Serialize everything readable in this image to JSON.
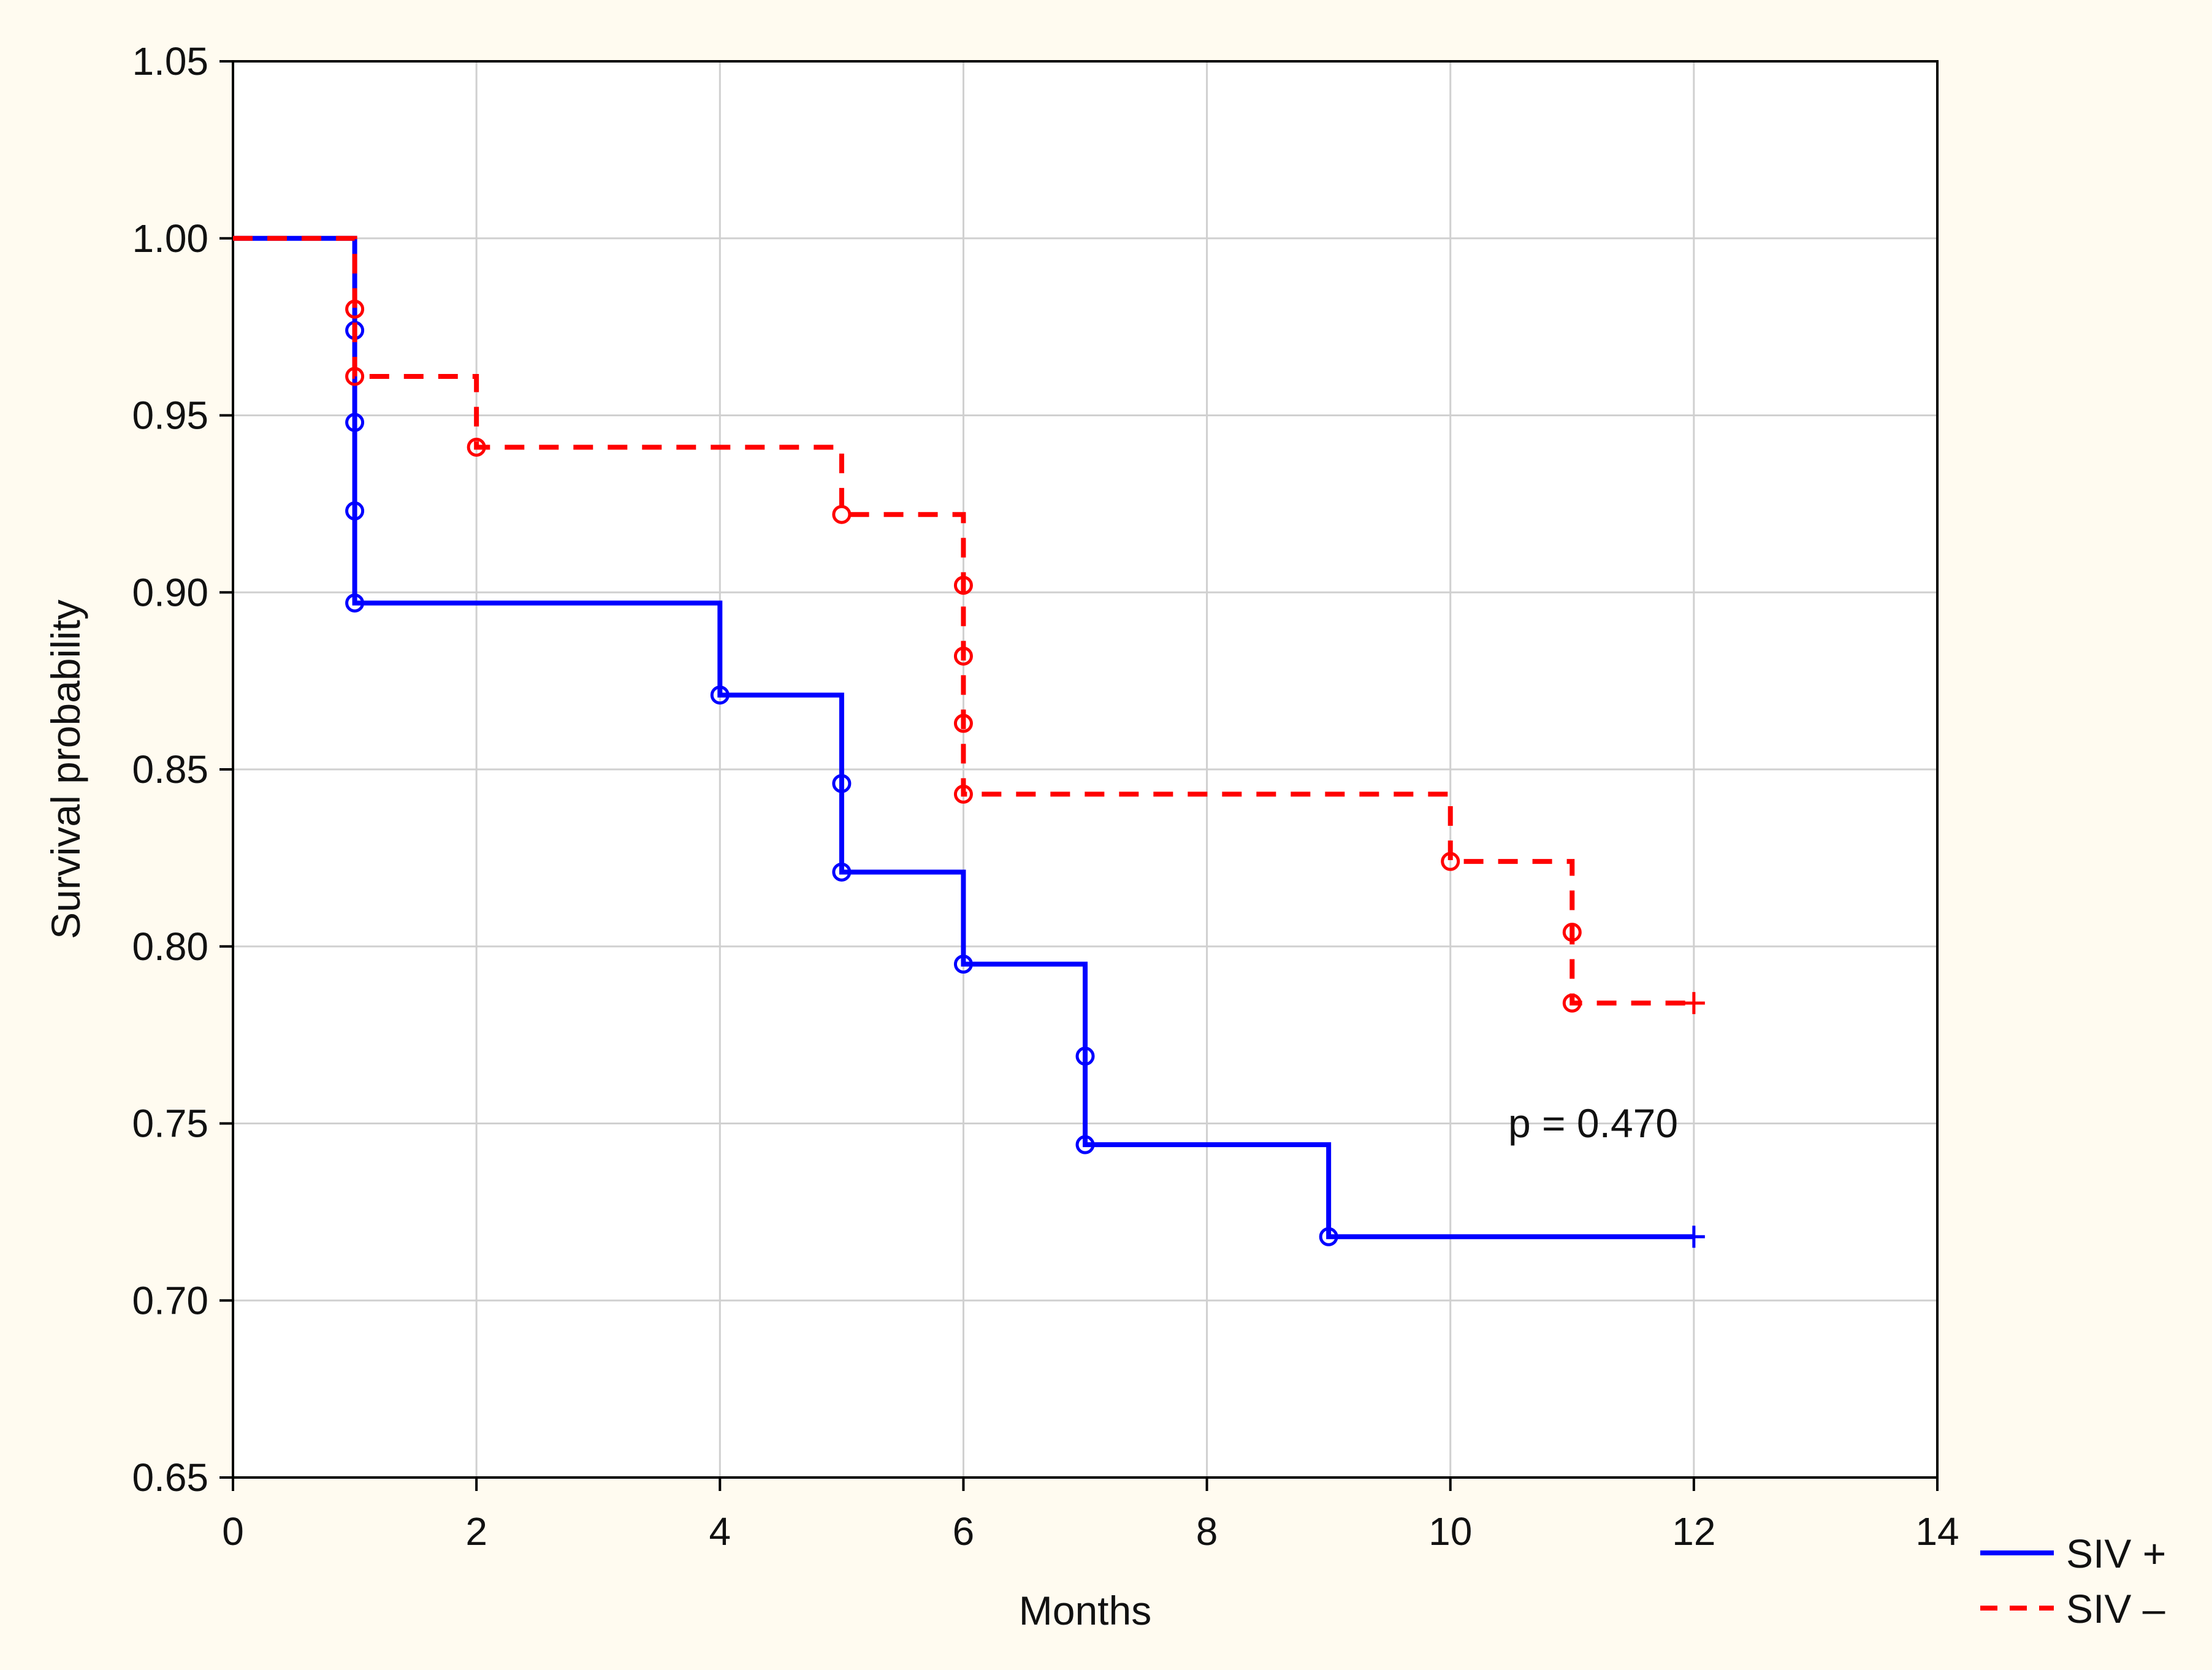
{
  "chart_data": {
    "type": "line",
    "subtype": "kaplan-meier step",
    "title": "",
    "xlabel": "Months",
    "ylabel": "Survival probability",
    "xlim": [
      0,
      14
    ],
    "ylim": [
      0.65,
      1.05
    ],
    "xticks": [
      "0",
      "2",
      "4",
      "6",
      "8",
      "10",
      "12",
      "14"
    ],
    "yticks": [
      "0.65",
      "0.70",
      "0.75",
      "0.80",
      "0.85",
      "0.90",
      "0.95",
      "1.00",
      "1.05"
    ],
    "grid": true,
    "legend_position": "bottom-right, outside plot",
    "annotation": "p = 0.470",
    "background_color": "#fffbf0",
    "series": [
      {
        "name": "SIV +",
        "color": "#0000ff",
        "line_style": "solid",
        "steps": [
          [
            0,
            1.0
          ],
          [
            1,
            0.897
          ],
          [
            4,
            0.871
          ],
          [
            5,
            0.821
          ],
          [
            6,
            0.795
          ],
          [
            7,
            0.744
          ],
          [
            9,
            0.718
          ],
          [
            12,
            0.718
          ]
        ],
        "event_points": [
          [
            1,
            0.974
          ],
          [
            1,
            0.948
          ],
          [
            1,
            0.923
          ],
          [
            1,
            0.897
          ],
          [
            4,
            0.871
          ],
          [
            5,
            0.846
          ],
          [
            5,
            0.821
          ],
          [
            6,
            0.795
          ],
          [
            7,
            0.769
          ],
          [
            7,
            0.744
          ],
          [
            9,
            0.718
          ]
        ],
        "censored": [
          [
            12,
            0.718
          ]
        ]
      },
      {
        "name": "SIV –",
        "color": "#ff0000",
        "line_style": "dashed",
        "steps": [
          [
            0,
            1.0
          ],
          [
            1,
            0.961
          ],
          [
            2,
            0.941
          ],
          [
            5,
            0.922
          ],
          [
            6,
            0.843
          ],
          [
            10,
            0.824
          ],
          [
            11,
            0.784
          ],
          [
            12,
            0.784
          ]
        ],
        "event_points": [
          [
            1,
            0.98
          ],
          [
            1,
            0.961
          ],
          [
            2,
            0.941
          ],
          [
            5,
            0.922
          ],
          [
            6,
            0.902
          ],
          [
            6,
            0.882
          ],
          [
            6,
            0.863
          ],
          [
            6,
            0.843
          ],
          [
            10,
            0.824
          ],
          [
            11,
            0.804
          ],
          [
            11,
            0.784
          ]
        ],
        "censored": [
          [
            12,
            0.784
          ]
        ]
      }
    ]
  }
}
